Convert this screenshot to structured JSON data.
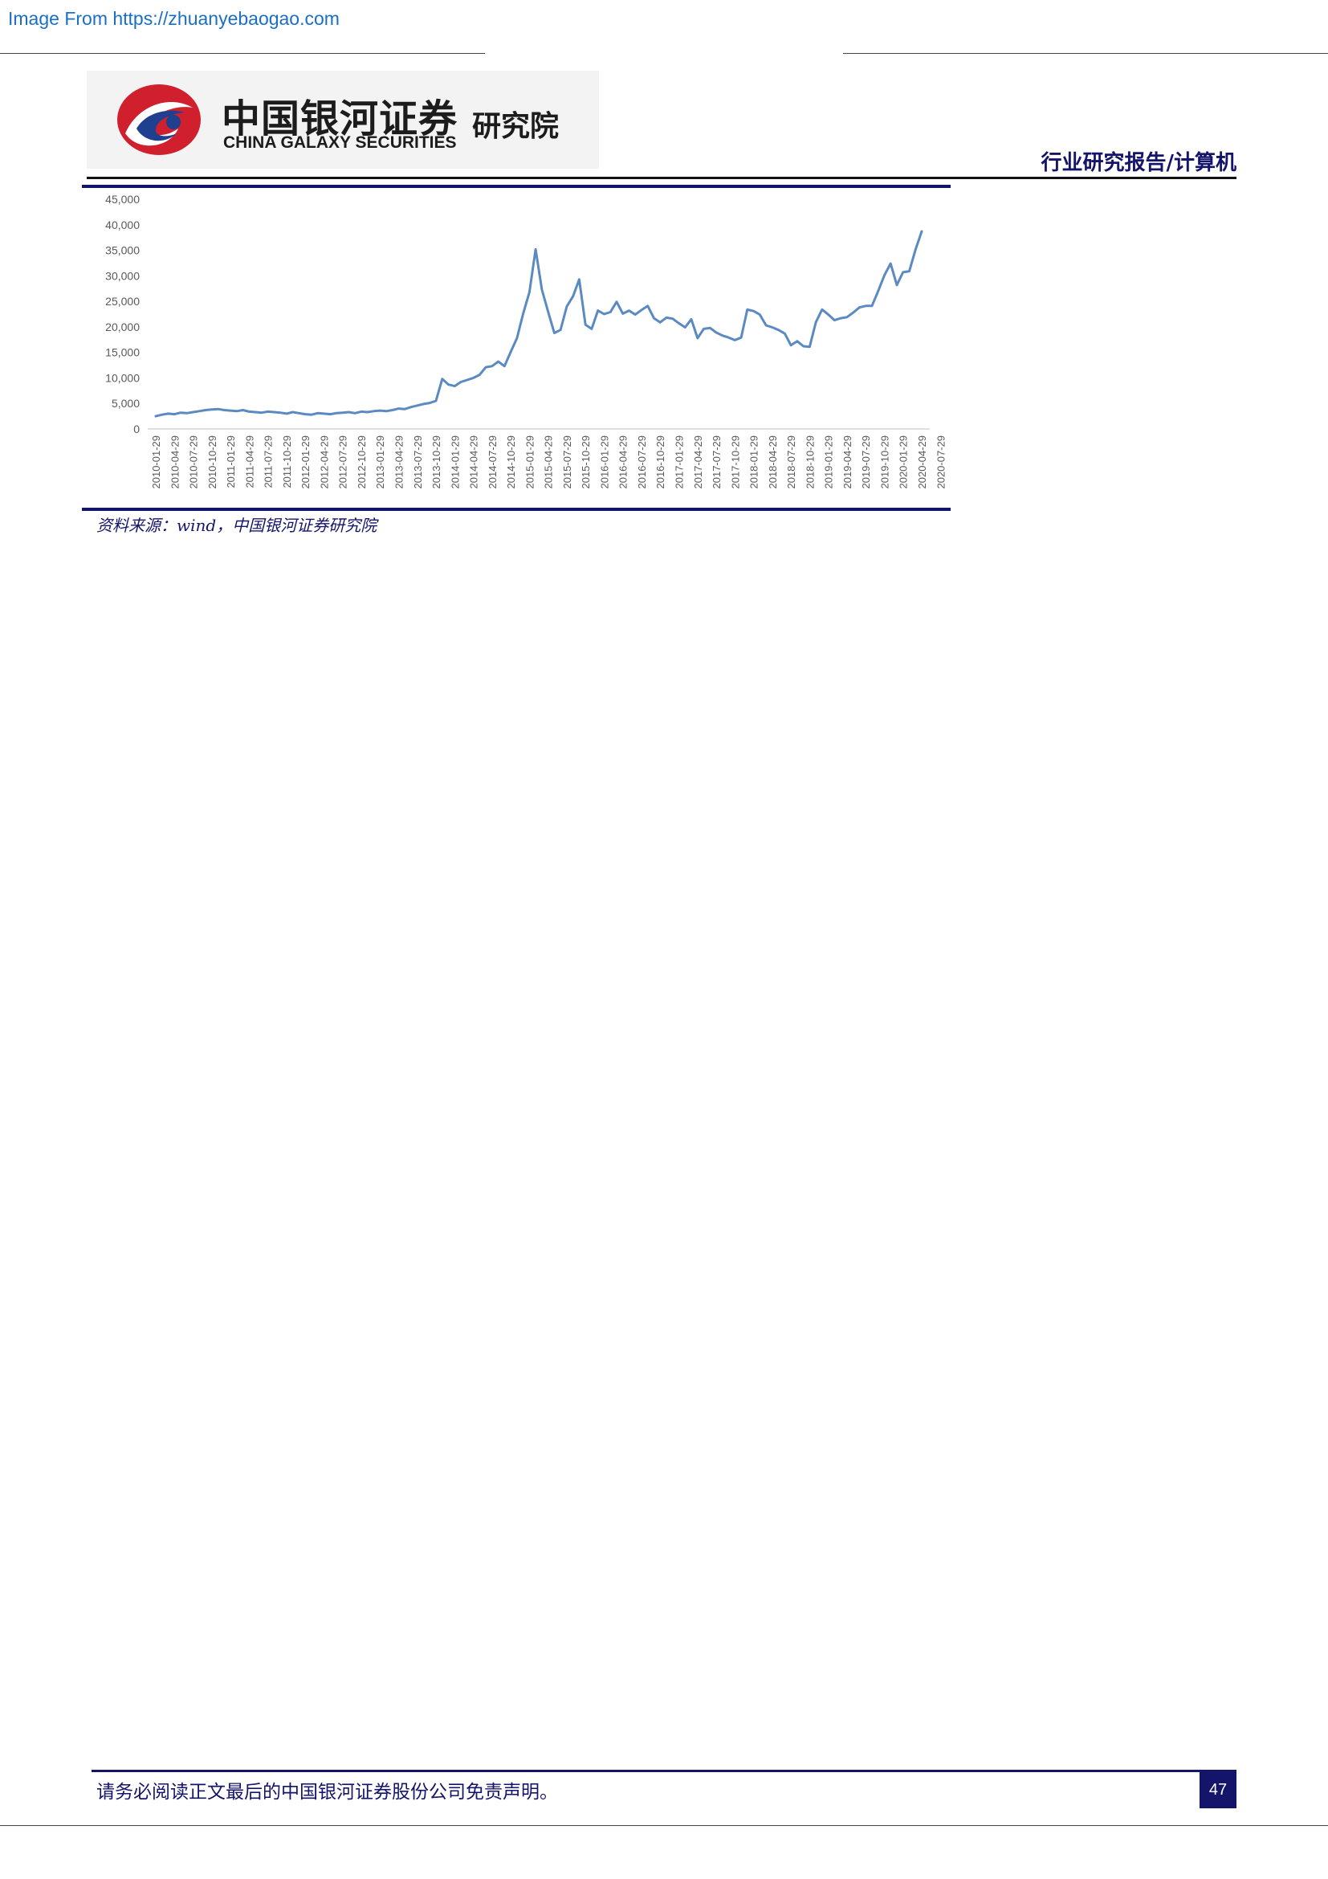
{
  "source_link": "Image From https://zhuanyebaogao.com",
  "logo": {
    "name_cn": "中国银河证券",
    "name_en": "CHINA GALAXY SECURITIES",
    "institute": "研究院"
  },
  "report_type": "行业研究报告/计算机",
  "figure_source": "资料来源：wind，中国银河证券研究院",
  "footer_text": "请务必阅读正文最后的中国银河证券股份公司免责声明。",
  "page_number": "47",
  "colors": {
    "navy": "#14146b",
    "line": "#5b8ac2",
    "logo_red": "#d0202e",
    "logo_blue": "#1f3f8f"
  },
  "chart_data": {
    "type": "line",
    "title": "",
    "xlabel": "",
    "ylabel": "",
    "ylim": [
      0,
      45000
    ],
    "yticks": [
      "45,000",
      "40,000",
      "35,000",
      "30,000",
      "25,000",
      "20,000",
      "15,000",
      "10,000",
      "5,000",
      "0"
    ],
    "x_tick_labels": [
      "2010-01-29",
      "2010-04-29",
      "2010-07-29",
      "2010-10-29",
      "2011-01-29",
      "2011-04-29",
      "2011-07-29",
      "2011-10-29",
      "2012-01-29",
      "2012-04-29",
      "2012-07-29",
      "2012-10-29",
      "2013-01-29",
      "2013-04-29",
      "2013-07-29",
      "2013-10-29",
      "2014-01-29",
      "2014-04-29",
      "2014-07-29",
      "2014-10-29",
      "2015-01-29",
      "2015-04-29",
      "2015-07-29",
      "2015-10-29",
      "2016-01-29",
      "2016-04-29",
      "2016-07-29",
      "2016-10-29",
      "2017-01-29",
      "2017-04-29",
      "2017-07-29",
      "2017-10-29",
      "2018-01-29",
      "2018-04-29",
      "2018-07-29",
      "2018-10-29",
      "2019-01-29",
      "2019-04-29",
      "2019-07-29",
      "2019-10-29",
      "2020-01-29",
      "2020-04-29",
      "2020-07-29"
    ],
    "grid": false,
    "legend": "none",
    "series": [
      {
        "values": [
          2500,
          2800,
          3000,
          2900,
          3200,
          3100,
          3300,
          3500,
          3700,
          3800,
          3900,
          3700,
          3600,
          3500,
          3700,
          3400,
          3300,
          3200,
          3400,
          3300,
          3200,
          3000,
          3300,
          3100,
          2900,
          2800,
          3100,
          3000,
          2900,
          3100,
          3200,
          3300,
          3100,
          3400,
          3300,
          3500,
          3600,
          3500,
          3700,
          4000,
          3900,
          4300,
          4600,
          4900,
          5100,
          5500,
          9800,
          8700,
          8400,
          9200,
          9600,
          10000,
          10600,
          12100,
          12300,
          13200,
          12300,
          15100,
          17800,
          22600,
          26800,
          35200,
          27300,
          23000,
          18800,
          19400,
          24000,
          26000,
          29300,
          20400,
          19600,
          23200,
          22500,
          22900,
          24900,
          22600,
          23200,
          22400,
          23300,
          24100,
          21700,
          20900,
          21800,
          21600,
          20700,
          19900,
          21500,
          17800,
          19600,
          19800,
          18900,
          18300,
          17900,
          17400,
          17900,
          23400,
          23100,
          22400,
          20300,
          19900,
          19400,
          18700,
          16400,
          17200,
          16200,
          16100,
          20900,
          23400,
          22400,
          21300,
          21700,
          21900,
          22800,
          23800,
          24100,
          24100,
          27000,
          30100,
          32400,
          28200,
          30700,
          30900,
          35100,
          38700
        ]
      }
    ]
  }
}
